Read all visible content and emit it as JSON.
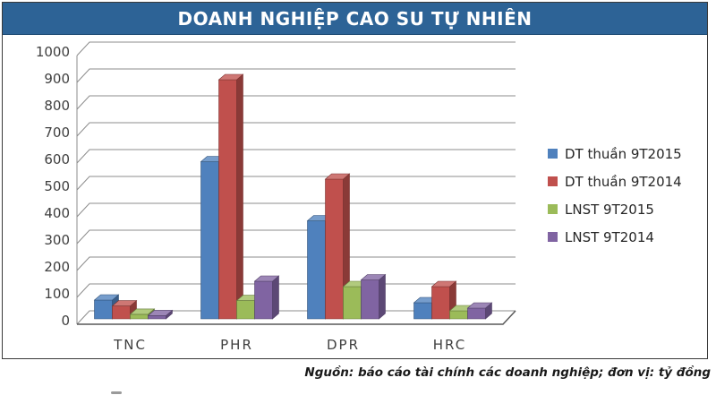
{
  "title": "DOANH NGHIỆP CAO SU TỰ NHIÊN",
  "source_note": "Nguồn: báo cáo tài chính các doanh nghiệp; đơn vị: tỷ đồng",
  "colors": {
    "title_bar": "#2d6396",
    "title_text": "#ffffff",
    "grid_line": "#8c8c8c",
    "axis_line": "#595959",
    "tick_text": "#404040",
    "series": [
      "#4F81BD",
      "#C0504D",
      "#9BBB59",
      "#8064A2"
    ]
  },
  "chart_data": {
    "type": "bar",
    "style": "3d-clustered-column",
    "title": "DOANH NGHIỆP CAO SU TỰ NHIÊN",
    "categories": [
      "TNC",
      "PHR",
      "DPR",
      "HRC"
    ],
    "series": [
      {
        "name": "DT thuần 9T2015",
        "color": "#4F81BD",
        "values": [
          70,
          585,
          365,
          60
        ]
      },
      {
        "name": "DT thuần 9T2014",
        "color": "#C0504D",
        "values": [
          48,
          890,
          520,
          120
        ]
      },
      {
        "name": "LNST 9T2015",
        "color": "#9BBB59",
        "values": [
          17,
          68,
          120,
          30
        ]
      },
      {
        "name": "LNST 9T2014",
        "color": "#8064A2",
        "values": [
          12,
          140,
          145,
          40
        ]
      }
    ],
    "xlabel": "",
    "ylabel": "",
    "unit": "tỷ đồng",
    "ylim": [
      0,
      1000
    ],
    "yticks": [
      0,
      100,
      200,
      300,
      400,
      500,
      600,
      700,
      800,
      900,
      1000
    ],
    "grid": true,
    "legend_position": "right"
  }
}
